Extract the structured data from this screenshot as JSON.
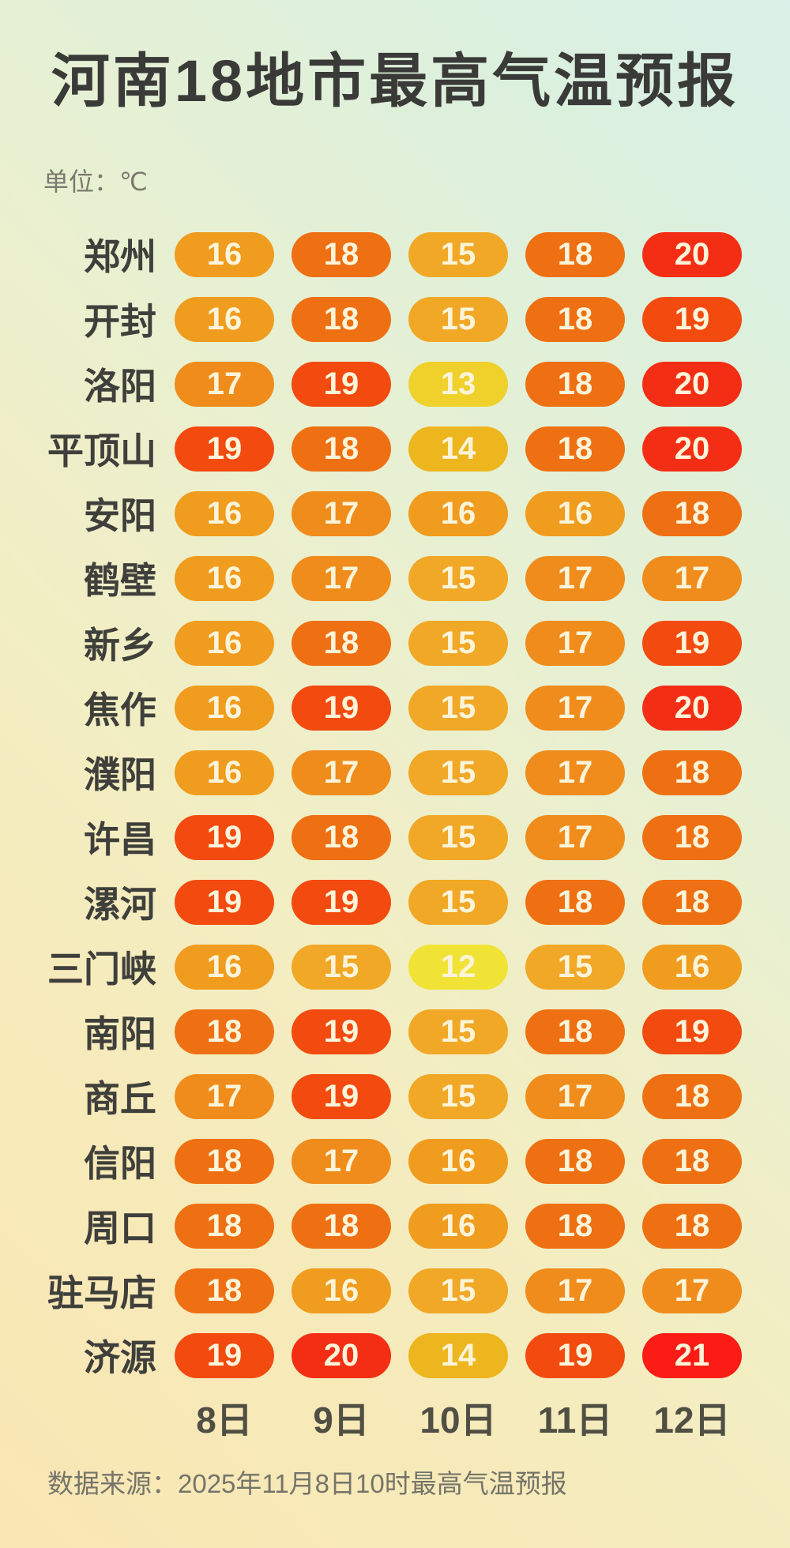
{
  "title": "河南18地市最高气温预报",
  "unit_label": "单位：℃",
  "source_note": "数据来源：2025年11月8日10时最高气温预报",
  "chart_data": {
    "type": "heatmap",
    "title": "河南18地市最高气温预报",
    "unit": "℃",
    "columns": [
      "8日",
      "9日",
      "10日",
      "11日",
      "12日"
    ],
    "rows": [
      {
        "city": "郑州",
        "values": [
          16,
          18,
          15,
          18,
          20
        ]
      },
      {
        "city": "开封",
        "values": [
          16,
          18,
          15,
          18,
          19
        ]
      },
      {
        "city": "洛阳",
        "values": [
          17,
          19,
          13,
          18,
          20
        ]
      },
      {
        "city": "平顶山",
        "values": [
          19,
          18,
          14,
          18,
          20
        ]
      },
      {
        "city": "安阳",
        "values": [
          16,
          17,
          16,
          16,
          18
        ]
      },
      {
        "city": "鹤壁",
        "values": [
          16,
          17,
          15,
          17,
          17
        ]
      },
      {
        "city": "新乡",
        "values": [
          16,
          18,
          15,
          17,
          19
        ]
      },
      {
        "city": "焦作",
        "values": [
          16,
          19,
          15,
          17,
          20
        ]
      },
      {
        "city": "濮阳",
        "values": [
          16,
          17,
          15,
          17,
          18
        ]
      },
      {
        "city": "许昌",
        "values": [
          19,
          18,
          15,
          17,
          18
        ]
      },
      {
        "city": "漯河",
        "values": [
          19,
          19,
          15,
          18,
          18
        ]
      },
      {
        "city": "三门峡",
        "values": [
          16,
          15,
          12,
          15,
          16
        ]
      },
      {
        "city": "南阳",
        "values": [
          18,
          19,
          15,
          18,
          19
        ]
      },
      {
        "city": "商丘",
        "values": [
          17,
          19,
          15,
          17,
          18
        ]
      },
      {
        "city": "信阳",
        "values": [
          18,
          17,
          16,
          18,
          18
        ]
      },
      {
        "city": "周口",
        "values": [
          18,
          18,
          16,
          18,
          18
        ]
      },
      {
        "city": "驻马店",
        "values": [
          18,
          16,
          15,
          17,
          17
        ]
      },
      {
        "city": "济源",
        "values": [
          19,
          20,
          14,
          19,
          21
        ]
      }
    ],
    "value_range": [
      12,
      21
    ],
    "grid": false,
    "legend_position": "none",
    "temp_colors": {
      "12": "#f0e335",
      "13": "#f0d12c",
      "14": "#edb61e",
      "15": "#f0a826",
      "16": "#f09c1e",
      "17": "#ef8c1c",
      "18": "#ee7013",
      "19": "#f34a10",
      "20": "#f42e14",
      "21": "#fa1c15"
    }
  }
}
